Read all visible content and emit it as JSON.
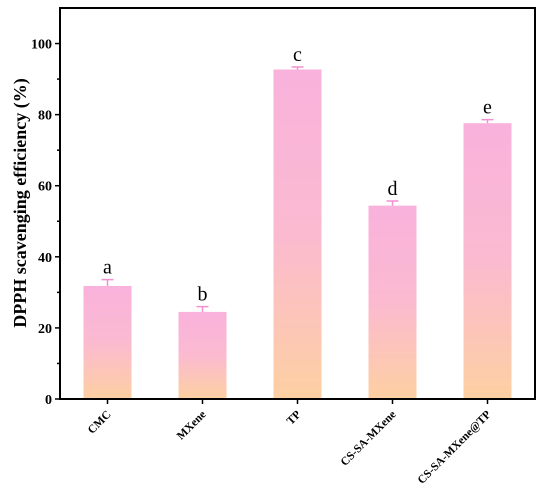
{
  "chart_data": {
    "type": "bar",
    "categories": [
      "CMC",
      "MXene",
      "TP",
      "CS-SA-MXene",
      "CS-SA-MXene@TP"
    ],
    "values": [
      31.8,
      24.5,
      92.7,
      54.4,
      77.6
    ],
    "errors": [
      1.8,
      1.5,
      0.7,
      1.3,
      1.0
    ],
    "significance_labels": [
      "a",
      "b",
      "c",
      "d",
      "e"
    ],
    "title": "",
    "xlabel": "",
    "ylabel": "DPPH scavenging efficiency (%)",
    "ylim": [
      0,
      110
    ],
    "yticks": [
      0,
      20,
      40,
      60,
      80,
      100
    ],
    "grid": false,
    "legend": "none",
    "colors": {
      "bar_top": "#f9b2dc",
      "bar_bottom": "#fdd0a2",
      "error_bar": "#f48fcf",
      "axis": "#000000"
    }
  }
}
